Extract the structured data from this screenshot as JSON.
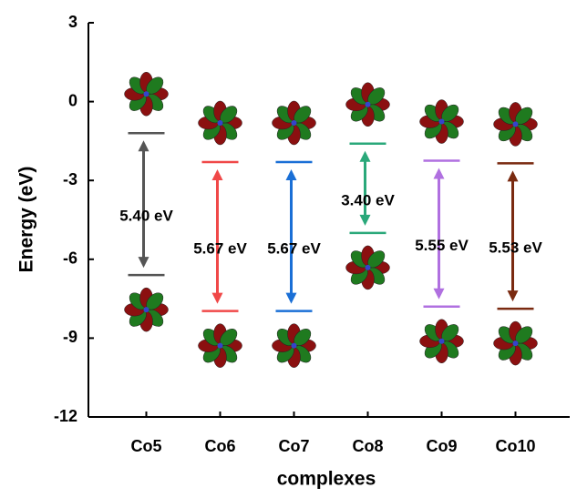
{
  "chart_data": {
    "type": "energy-levels",
    "y_label": "Energy (eV)",
    "x_label": "complexes",
    "categories": [
      "Co5",
      "Co6",
      "Co7",
      "Co8",
      "Co9",
      "Co10"
    ],
    "colors": [
      "#555555",
      "#f04848",
      "#1a6fd6",
      "#2aa87a",
      "#b070e0",
      "#7a2a10"
    ],
    "lumo": [
      -1.2,
      -2.3,
      -2.3,
      -1.6,
      -2.25,
      -2.35
    ],
    "homo": [
      -6.6,
      -7.97,
      -7.97,
      -5.0,
      -7.8,
      -7.88
    ],
    "gaps": {
      "values": [
        5.4,
        5.67,
        5.67,
        3.4,
        5.55,
        5.53
      ],
      "value_labels": [
        "5.40 eV",
        "5.67 eV",
        "5.67 eV",
        "3.40 eV",
        "5.55 eV",
        "5.53 eV"
      ]
    },
    "ylim": [
      -12,
      3
    ],
    "yticks": [
      -12,
      -9,
      -6,
      -3,
      0,
      3
    ]
  }
}
